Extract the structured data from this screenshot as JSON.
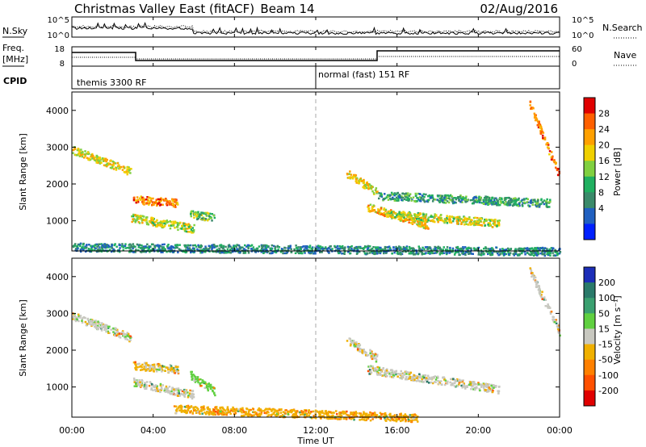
{
  "title": {
    "site": "Christmas Valley East (fitACF)",
    "beam": "Beam 14",
    "date": "02/Aug/2016"
  },
  "header_panels": {
    "nsky_label": "N.Sky",
    "nsearch_label": "N.Search",
    "freq_label_1": "Freq.",
    "freq_label_2": "[MHz]",
    "nave_label": "Nave",
    "cpid_label": "CPID",
    "noise_ticks_left": [
      "10^5",
      "10^0"
    ],
    "noise_ticks_right": [
      "10^5",
      "10^0"
    ],
    "freq_ticks_left": [
      "18",
      "8"
    ],
    "freq_ticks_right": [
      "60",
      "0"
    ]
  },
  "cpid": {
    "modes": [
      {
        "label": "themis 3300 RF",
        "start": "00:00"
      },
      {
        "label": "normal (fast) 151 RF",
        "start": "12:00"
      }
    ]
  },
  "x_axis": {
    "label": "Time UT",
    "ticks": [
      "00:00",
      "04:00",
      "08:00",
      "12:00",
      "16:00",
      "20:00",
      "00:00"
    ]
  },
  "power_colorbar": {
    "label": "Power [dB]",
    "ticks": [
      "28",
      "24",
      "20",
      "16",
      "12",
      "8",
      "4"
    ],
    "colors": [
      "#e00000",
      "#ff6000",
      "#ffa000",
      "#f0d000",
      "#80d040",
      "#20b060",
      "#3a8a6a",
      "#2060c0",
      "#0020ff"
    ]
  },
  "velocity_colorbar": {
    "label": "Velocity [m s⁻¹]",
    "ticks": [
      "200",
      "100",
      "50",
      "15",
      "-15",
      "-50",
      "-100",
      "-200"
    ],
    "colors": [
      "#1c2eb8",
      "#2a7a6a",
      "#3aa070",
      "#60d040",
      "#c8c8c0",
      "#f0b000",
      "#ff8000",
      "#ff5000",
      "#e00000"
    ]
  },
  "chart_data": [
    {
      "type": "heatmap",
      "panel": "power",
      "ylabel": "Slant Range [km]",
      "xlabel": "Time UT",
      "xlim_hours": [
        0,
        24
      ],
      "ylim_km": [
        180,
        4500
      ],
      "yticks": [
        1000,
        2000,
        3000,
        4000
      ],
      "colorbar_label": "Power [dB]",
      "features": [
        {
          "t0": 0.0,
          "t1": 2.9,
          "r0": 2950,
          "r1": 2350,
          "dB": 20
        },
        {
          "t0": 3.0,
          "t1": 5.2,
          "r0": 1600,
          "r1": 1500,
          "dB": 26
        },
        {
          "t0": 2.9,
          "t1": 6.0,
          "r0": 1100,
          "r1": 800,
          "dB": 18
        },
        {
          "t0": 5.8,
          "t1": 7.0,
          "r0": 1200,
          "r1": 1100,
          "dB": 14
        },
        {
          "t0": 13.5,
          "t1": 15.0,
          "r0": 2300,
          "r1": 1800,
          "dB": 20
        },
        {
          "t0": 14.5,
          "t1": 17.5,
          "r0": 1400,
          "r1": 900,
          "dB": 22
        },
        {
          "t0": 15.5,
          "t1": 21.0,
          "r0": 1200,
          "r1": 950,
          "dB": 18
        },
        {
          "t0": 15.0,
          "t1": 23.5,
          "r0": 1700,
          "r1": 1500,
          "dB": 10
        },
        {
          "t0": 22.5,
          "t1": 24.0,
          "r0": 4200,
          "r1": 2200,
          "dB": 26
        },
        {
          "t0": 0.0,
          "t1": 24.0,
          "r0": 300,
          "r1": 180,
          "dB": 8
        }
      ]
    },
    {
      "type": "heatmap",
      "panel": "velocity",
      "ylabel": "Slant Range [km]",
      "xlabel": "Time UT",
      "xlim_hours": [
        0,
        24
      ],
      "ylim_km": [
        180,
        4500
      ],
      "yticks": [
        1000,
        2000,
        3000,
        4000
      ],
      "colorbar_label": "Velocity [m s⁻¹]",
      "features": [
        {
          "t0": 0.0,
          "t1": 2.9,
          "r0": 2950,
          "r1": 2350,
          "v": 0
        },
        {
          "t0": 3.0,
          "t1": 5.2,
          "r0": 1600,
          "r1": 1500,
          "v": -20
        },
        {
          "t0": 3.0,
          "t1": 6.0,
          "r0": 1150,
          "r1": 800,
          "v": 0
        },
        {
          "t0": 5.8,
          "t1": 7.0,
          "r0": 1350,
          "r1": 900,
          "v": 30
        },
        {
          "t0": 13.5,
          "t1": 15.0,
          "r0": 2300,
          "r1": 1800,
          "v": 0
        },
        {
          "t0": 14.5,
          "t1": 21.0,
          "r0": 1500,
          "r1": 950,
          "v": 0
        },
        {
          "t0": 22.5,
          "t1": 24.0,
          "r0": 4200,
          "r1": 2500,
          "v": 0
        },
        {
          "t0": 5.0,
          "t1": 17.0,
          "r0": 420,
          "r1": 180,
          "v": -40
        }
      ]
    }
  ]
}
